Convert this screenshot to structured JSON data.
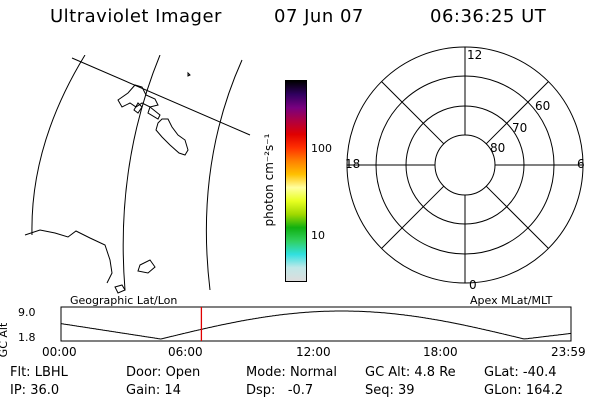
{
  "header": {
    "instrument": "Ultraviolet Imager",
    "date": "07 Jun 07",
    "time": "06:36:25 UT"
  },
  "colorbar": {
    "unit_label": "photon cm⁻²s⁻¹",
    "ticks": [
      {
        "label": "100",
        "value": 100
      },
      {
        "label": "10",
        "value": 10
      }
    ],
    "colors": [
      "#dcdcdc",
      "#c0e8e8",
      "#30e0e0",
      "#30d060",
      "#10b010",
      "#a0d800",
      "#e8ff20",
      "#ffffa0",
      "#ffc000",
      "#ff8000",
      "#ff3000",
      "#e00000",
      "#b00040",
      "#780080",
      "#300060",
      "#000000"
    ]
  },
  "left_panel": {
    "label": "Geographic Lat/Lon"
  },
  "polar": {
    "label": "Apex MLat/MLT",
    "mlt_labels": [
      "12",
      "18",
      "6",
      "0"
    ],
    "lat_labels": [
      "60",
      "70",
      "80"
    ]
  },
  "timeline": {
    "y_axis_title": "GC Alt",
    "y_ticks": [
      "9.0",
      "1.8"
    ],
    "x_ticks": [
      "00:00",
      "06:00",
      "12:00",
      "18:00",
      "23:59"
    ],
    "marker_time_hours": 6.607,
    "marker_color": "#e00000"
  },
  "status": {
    "row1": [
      {
        "key": "Flt:",
        "value": "LBHL"
      },
      {
        "key": "Door:",
        "value": "Open"
      },
      {
        "key": "Mode:",
        "value": "Normal"
      },
      {
        "key": "GC Alt:",
        "value": "4.8 Re"
      },
      {
        "key": "GLat:",
        "value": "-40.4"
      }
    ],
    "row2": [
      {
        "key": "IP:",
        "value": "36.0"
      },
      {
        "key": "Gain:",
        "value": "14"
      },
      {
        "key": "Dsp:",
        "value": "  -0.7"
      },
      {
        "key": "Seq:",
        "value": "39"
      },
      {
        "key": "GLon:",
        "value": "164.2"
      }
    ]
  }
}
